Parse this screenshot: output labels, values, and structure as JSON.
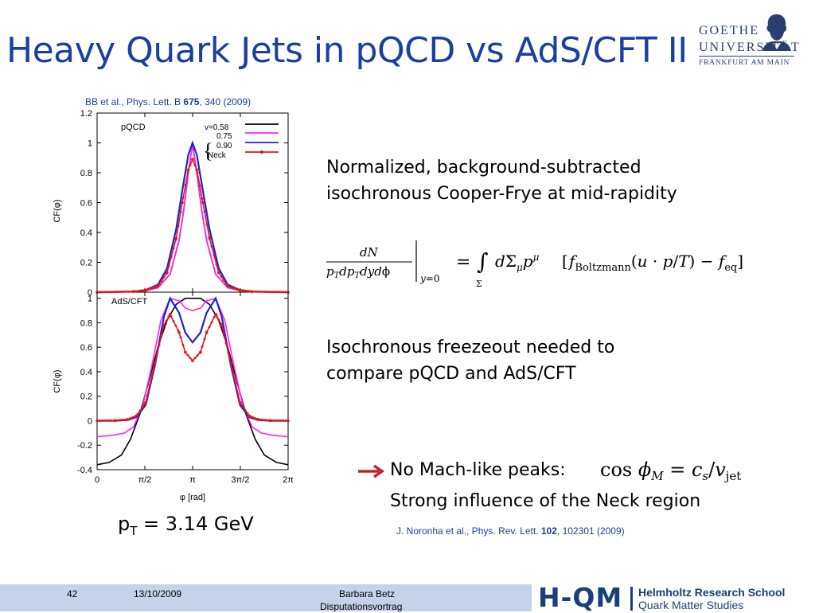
{
  "slide": {
    "title": "Heavy Quark Jets in pQCD vs AdS/CFT II",
    "reference_top": {
      "prefix": "BB et al., Phys. Lett. B ",
      "volume": "675",
      "suffix": ", 340 (2009)"
    },
    "text1_line1": "Normalized, background-subtracted",
    "text1_line2": "isochronous Cooper-Frye at mid-rapidity",
    "text2_line1": "Isochronous freezeout needed to",
    "text2_line2": "compare pQCD and AdS/CFT",
    "bullet_line1": "No Mach-like peaks:",
    "bullet_line2": "Strong influence of the Neck region",
    "reference_bottom": {
      "prefix": "J. Noronha et al., Phys. Rev. Lett. ",
      "volume": "102",
      "suffix": ", 102301 (2009)"
    },
    "pt_label": {
      "p": "p",
      "sub": "T",
      "rest": " = 3.14 GeV"
    }
  },
  "logos": {
    "goethe_line1": "GOETHE",
    "goethe_line2": "UNIVERSITÄT",
    "goethe_line3": "FRANKFURT AM MAIN",
    "hqm_big": "H-QM",
    "hqm_line1": "Helmholtz Research School",
    "hqm_line2": "Quark Matter Studies"
  },
  "footer": {
    "page": "42",
    "date": "13/10/2009",
    "author": "Barbara Betz",
    "event": "Disputationsvortrag"
  },
  "colors": {
    "accent": "#1b3fa0",
    "footer_bg": "#c5d3e8",
    "arrow": "#c0202a"
  },
  "chart_data": [
    {
      "type": "line",
      "panel_label": "pQCD",
      "ylabel": "CF(φ)",
      "ylim": [
        0,
        1.2
      ],
      "yticks": [
        "0",
        "0.2",
        "0.4",
        "0.6",
        "0.8",
        "1",
        "1.2"
      ],
      "legend": {
        "header": "v=0.58",
        "entries": [
          "0.75",
          "0.90",
          "Neck"
        ]
      },
      "series": [
        {
          "name": "v=0.58",
          "color": "#000000",
          "x": [
            0,
            1.2,
            1.6,
            2.0,
            2.4,
            2.7,
            2.85,
            3.0,
            3.14,
            3.28,
            3.44,
            3.6,
            3.9,
            4.3,
            4.7,
            5.1,
            6.28
          ],
          "y": [
            0,
            0.003,
            0.01,
            0.03,
            0.12,
            0.35,
            0.55,
            0.8,
            0.99,
            0.8,
            0.55,
            0.35,
            0.12,
            0.03,
            0.01,
            0.003,
            0
          ]
        },
        {
          "name": "0.75",
          "color": "#ff20ff",
          "x": [
            0,
            1.2,
            1.6,
            2.0,
            2.4,
            2.7,
            2.85,
            3.0,
            3.14,
            3.28,
            3.44,
            3.6,
            3.9,
            4.3,
            4.7,
            5.1,
            6.28
          ],
          "y": [
            0,
            0.003,
            0.01,
            0.03,
            0.12,
            0.35,
            0.55,
            0.8,
            0.99,
            0.8,
            0.55,
            0.35,
            0.12,
            0.03,
            0.01,
            0.003,
            0
          ]
        },
        {
          "name": "0.90",
          "color": "#1a24cc",
          "x": [
            0,
            1.2,
            1.6,
            2.0,
            2.3,
            2.6,
            2.8,
            3.0,
            3.14,
            3.28,
            3.48,
            3.7,
            4.0,
            4.3,
            4.7,
            5.1,
            6.28
          ],
          "y": [
            0,
            0.004,
            0.015,
            0.05,
            0.16,
            0.42,
            0.68,
            0.92,
            1.0,
            0.92,
            0.68,
            0.42,
            0.16,
            0.05,
            0.015,
            0.004,
            0
          ]
        },
        {
          "name": "Neck",
          "color": "#e01818",
          "x": [
            0,
            1.2,
            1.6,
            2.0,
            2.3,
            2.6,
            2.8,
            3.0,
            3.14,
            3.28,
            3.48,
            3.7,
            4.0,
            4.3,
            4.7,
            5.1,
            6.28
          ],
          "y": [
            0,
            0.004,
            0.013,
            0.04,
            0.13,
            0.36,
            0.6,
            0.82,
            0.89,
            0.82,
            0.6,
            0.36,
            0.13,
            0.04,
            0.013,
            0.004,
            0
          ]
        }
      ]
    },
    {
      "type": "line",
      "panel_label": "AdS/CFT",
      "ylabel": "CF(φ)",
      "xlabel": "φ [rad]",
      "ylim": [
        -0.4,
        1.05
      ],
      "xlim": [
        0,
        6.283
      ],
      "yticks": [
        "-0.4",
        "-0.2",
        "0",
        "0.2",
        "0.4",
        "0.6",
        "0.8",
        "1"
      ],
      "xticks": [
        "0",
        "π/2",
        "π",
        "3π/2",
        "2π"
      ],
      "series": [
        {
          "name": "v=0.58",
          "color": "#000000",
          "x": [
            0,
            0.4,
            0.8,
            1.1,
            1.4,
            1.7,
            2.0,
            2.3,
            2.6,
            2.9,
            3.14,
            3.4,
            3.7,
            4.0,
            4.3,
            4.6,
            4.9,
            5.2,
            5.5,
            5.9,
            6.28
          ],
          "y": [
            -0.36,
            -0.34,
            -0.28,
            -0.15,
            0.05,
            0.32,
            0.6,
            0.82,
            0.95,
            1.0,
            1.0,
            1.0,
            0.95,
            0.82,
            0.6,
            0.32,
            0.05,
            -0.15,
            -0.28,
            -0.34,
            -0.36
          ]
        },
        {
          "name": "0.75",
          "color": "#ff20ff",
          "x": [
            0,
            0.5,
            0.9,
            1.2,
            1.5,
            1.8,
            2.1,
            2.4,
            2.7,
            2.9,
            3.14,
            3.4,
            3.6,
            3.9,
            4.2,
            4.5,
            4.8,
            5.1,
            5.4,
            5.8,
            6.28
          ],
          "y": [
            -0.13,
            -0.12,
            -0.1,
            -0.05,
            0.12,
            0.45,
            0.82,
            1.0,
            0.98,
            0.92,
            0.9,
            0.92,
            0.98,
            1.0,
            0.82,
            0.45,
            0.12,
            -0.05,
            -0.1,
            -0.12,
            -0.13
          ]
        },
        {
          "name": "0.90",
          "color": "#1a24cc",
          "x": [
            0,
            0.6,
            1.0,
            1.3,
            1.6,
            1.9,
            2.2,
            2.4,
            2.7,
            2.9,
            3.14,
            3.4,
            3.6,
            3.9,
            4.1,
            4.4,
            4.7,
            5.0,
            5.3,
            5.7,
            6.28
          ],
          "y": [
            0.0,
            0.0,
            0.005,
            0.03,
            0.13,
            0.45,
            0.85,
            1.0,
            0.88,
            0.72,
            0.64,
            0.72,
            0.88,
            1.0,
            0.85,
            0.45,
            0.13,
            0.03,
            0.005,
            0.0,
            0.0
          ]
        },
        {
          "name": "Neck",
          "color": "#e01818",
          "x": [
            0,
            0.6,
            1.0,
            1.3,
            1.6,
            1.9,
            2.2,
            2.4,
            2.7,
            2.9,
            3.14,
            3.4,
            3.6,
            3.9,
            4.1,
            4.4,
            4.7,
            5.0,
            5.3,
            5.7,
            6.28
          ],
          "y": [
            0.0,
            0.002,
            0.01,
            0.04,
            0.15,
            0.47,
            0.78,
            0.87,
            0.72,
            0.56,
            0.49,
            0.56,
            0.72,
            0.87,
            0.78,
            0.47,
            0.15,
            0.04,
            0.01,
            0.002,
            0.0
          ]
        }
      ]
    }
  ]
}
